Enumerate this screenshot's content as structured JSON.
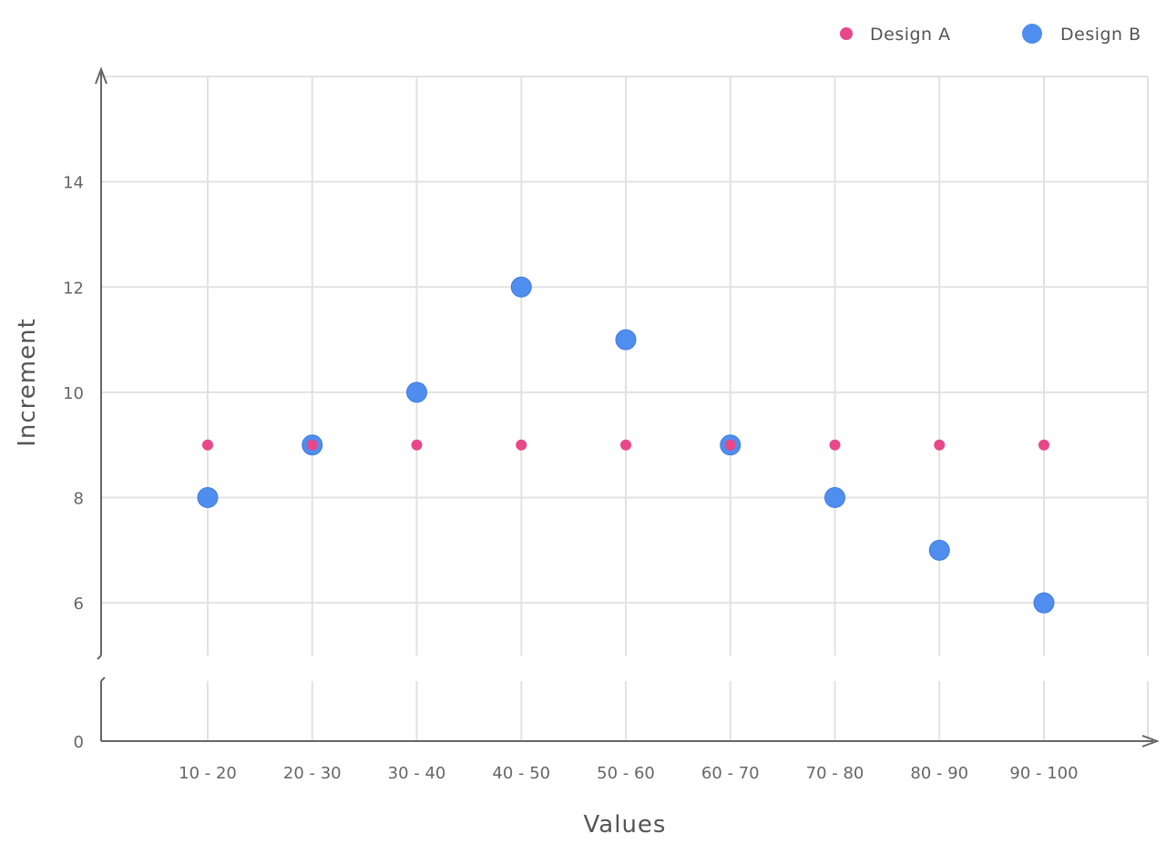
{
  "chart_data": {
    "type": "scatter",
    "categories": [
      "10 - 20",
      "20 - 30",
      "30 - 40",
      "40 - 50",
      "50 - 60",
      "60 - 70",
      "70 - 80",
      "80 - 90",
      "90 - 100"
    ],
    "series": [
      {
        "name": "Design A",
        "values": [
          9,
          9,
          9,
          9,
          9,
          9,
          9,
          9,
          9
        ],
        "color": "#e8488a"
      },
      {
        "name": "Design B",
        "values": [
          8,
          9,
          10,
          12,
          11,
          9,
          8,
          7,
          6
        ],
        "color": "#4f8def"
      }
    ],
    "xlabel": "Values",
    "ylabel": "Increment",
    "yticks": [
      0,
      6,
      8,
      10,
      12,
      14
    ],
    "ylim": [
      5,
      16
    ],
    "y_axis_break": true,
    "grid": true,
    "legend_position": "top-right"
  }
}
